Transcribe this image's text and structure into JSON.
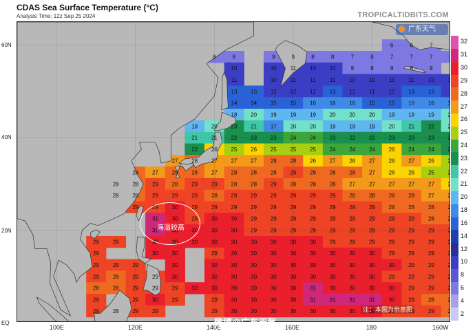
{
  "header": {
    "title": "CDAS Sea Surface Temperature (°C)",
    "analysis_time": "Analysis Time: 12z Sep 25 2024",
    "site": "TROPICALTIDBITS.COM"
  },
  "axes": {
    "lat_labels": [
      "60N",
      "40N",
      "20N",
      "EQ"
    ],
    "lon_labels": [
      "100E",
      "120E",
      "140E",
      "160E",
      "180",
      "160W"
    ]
  },
  "colorbar": {
    "labels": [
      "32",
      "31",
      "30",
      "29",
      "28",
      "27",
      "26",
      "25",
      "24",
      "23",
      "22",
      "21",
      "20",
      "18",
      "16",
      "14",
      "12",
      "10",
      "8",
      "6",
      "4",
      "2"
    ],
    "colors": [
      "#e44fb2",
      "#d0277a",
      "#ea1f2c",
      "#ee4324",
      "#ef6a20",
      "#f49a1a",
      "#fad400",
      "#a8cf10",
      "#3da63a",
      "#1a8f4e",
      "#3fc7a8",
      "#71e2c9",
      "#5fb6f1",
      "#3f8ae6",
      "#2962d6",
      "#1e3fae",
      "#2a2f98",
      "#3b3ec4",
      "#5b56d6",
      "#7d78e2",
      "#a7a1ec",
      "#ccc8f5"
    ]
  },
  "overlay": {
    "logo_text": "广东天气",
    "callout_label": "海温较高",
    "note": "注：本图为示意图",
    "watermark": "微博@广东天气"
  },
  "sst_grid": {
    "lat_start": 60,
    "lat_step": -2.5,
    "lon_start": 110,
    "lon_step": 5,
    "land_marker": "x",
    "rows": [
      [
        "x",
        "x",
        "x",
        "x",
        "x",
        "x",
        "x",
        "x",
        "x",
        "x",
        "x",
        "x",
        "x",
        "x",
        "x",
        "6",
        "6",
        "7",
        "x",
        "x"
      ],
      [
        "x",
        "x",
        "x",
        "x",
        "x",
        "x",
        "8",
        "8",
        "x",
        "9",
        "9",
        "8",
        "8",
        "7",
        "6",
        "7",
        "7",
        "7",
        "7",
        "x"
      ],
      [
        "x",
        "x",
        "x",
        "x",
        "x",
        "x",
        "x",
        "10",
        "x",
        "10",
        "11",
        "10",
        "10",
        "9",
        "8",
        "9",
        "8",
        "9",
        "x",
        "x"
      ],
      [
        "x",
        "x",
        "x",
        "x",
        "x",
        "x",
        "x",
        "11",
        "x",
        "10",
        "11",
        "11",
        "11",
        "10",
        "10",
        "11",
        "11",
        "10",
        "10",
        "11"
      ],
      [
        "x",
        "x",
        "x",
        "x",
        "x",
        "x",
        "x",
        "13",
        "13",
        "12",
        "12",
        "12",
        "13",
        "12",
        "11",
        "12",
        "13",
        "13",
        "11",
        "12"
      ],
      [
        "x",
        "x",
        "x",
        "x",
        "x",
        "x",
        "x",
        "14",
        "14",
        "15",
        "15",
        "16",
        "16",
        "16",
        "15",
        "15",
        "16",
        "16",
        "17",
        "17"
      ],
      [
        "x",
        "x",
        "x",
        "x",
        "x",
        "x",
        "x",
        "18",
        "20",
        "19",
        "19",
        "19",
        "20",
        "20",
        "20",
        "19",
        "19",
        "19",
        "20",
        "20"
      ],
      [
        "x",
        "x",
        "x",
        "x",
        "x",
        "19",
        "20",
        "23",
        "21",
        "17",
        "20",
        "20",
        "19",
        "19",
        "19",
        "20",
        "21",
        "22",
        "20",
        "21"
      ],
      [
        "x",
        "x",
        "x",
        "x",
        "x",
        "21",
        "21",
        "22",
        "23",
        "23",
        "24",
        "24",
        "23",
        "22",
        "22",
        "23",
        "23",
        "23",
        "23",
        "24"
      ],
      [
        "x",
        "x",
        "x",
        "x",
        "x",
        "22",
        "26",
        "25",
        "26",
        "25",
        "25",
        "25",
        "24",
        "24",
        "24",
        "26",
        "24",
        "24",
        "22",
        "22"
      ],
      [
        "x",
        "x",
        "x",
        "x",
        "27",
        "28",
        "27",
        "27",
        "27",
        "28",
        "28",
        "26",
        "27",
        "26",
        "27",
        "26",
        "27",
        "26",
        "25",
        "24"
      ],
      [
        "x",
        "x",
        "28",
        "27",
        "28",
        "28",
        "27",
        "28",
        "28",
        "28",
        "29",
        "28",
        "28",
        "28",
        "27",
        "26",
        "26",
        "25",
        "25",
        "23"
      ],
      [
        "x",
        "28",
        "28",
        "29",
        "28",
        "29",
        "29",
        "28",
        "28",
        "29",
        "28",
        "28",
        "28",
        "27",
        "27",
        "27",
        "27",
        "27",
        "26",
        "26"
      ],
      [
        "x",
        "28",
        "28",
        "29",
        "29",
        "29",
        "28",
        "29",
        "29",
        "29",
        "29",
        "29",
        "29",
        "28",
        "28",
        "28",
        "28",
        "27",
        "27",
        "26"
      ],
      [
        "x",
        "x",
        "29",
        "29",
        "30",
        "29",
        "29",
        "29",
        "29",
        "29",
        "29",
        "29",
        "29",
        "29",
        "29",
        "28",
        "28",
        "28",
        "28",
        "27"
      ],
      [
        "x",
        "x",
        "x",
        "31",
        "30",
        "29",
        "30",
        "30",
        "29",
        "29",
        "29",
        "29",
        "29",
        "29",
        "29",
        "29",
        "29",
        "28",
        "28",
        "28"
      ],
      [
        "x",
        "x",
        "x",
        "31",
        "30",
        "30",
        "30",
        "30",
        "29",
        "29",
        "29",
        "29",
        "29",
        "29",
        "29",
        "29",
        "29",
        "29",
        "29",
        "28"
      ],
      [
        "29",
        "29",
        "x",
        "30",
        "30",
        "30",
        "30",
        "30",
        "30",
        "30",
        "30",
        "30",
        "29",
        "29",
        "29",
        "29",
        "29",
        "29",
        "29",
        "28"
      ],
      [
        "29",
        "x",
        "x",
        "30",
        "30",
        "x",
        "29",
        "30",
        "30",
        "30",
        "30",
        "30",
        "30",
        "30",
        "30",
        "29",
        "29",
        "29",
        "29",
        "28"
      ],
      [
        "29",
        "29",
        "29",
        "x",
        "30",
        "x",
        "30",
        "30",
        "30",
        "30",
        "30",
        "30",
        "30",
        "30",
        "30",
        "30",
        "29",
        "29",
        "29",
        "29"
      ],
      [
        "29",
        "28",
        "29",
        "29",
        "30",
        "x",
        "30",
        "30",
        "30",
        "30",
        "30",
        "30",
        "30",
        "30",
        "30",
        "29",
        "29",
        "29",
        "29",
        "29"
      ],
      [
        "28",
        "28",
        "29",
        "29",
        "29",
        "30",
        "30",
        "30",
        "30",
        "30",
        "30",
        "31",
        "30",
        "30",
        "30",
        "30",
        "29",
        "29",
        "29",
        "29"
      ],
      [
        "29",
        "x",
        "29",
        "30",
        "29",
        "x",
        "29",
        "30",
        "30",
        "30",
        "30",
        "31",
        "31",
        "31",
        "31",
        "30",
        "29",
        "28",
        "28",
        "28"
      ],
      [
        "29",
        "28",
        "29",
        "29",
        "x",
        "x",
        "29",
        "30",
        "30",
        "30",
        "30",
        "30",
        "30",
        "30",
        "30",
        "29",
        "29",
        "29",
        "28",
        "28"
      ]
    ]
  }
}
